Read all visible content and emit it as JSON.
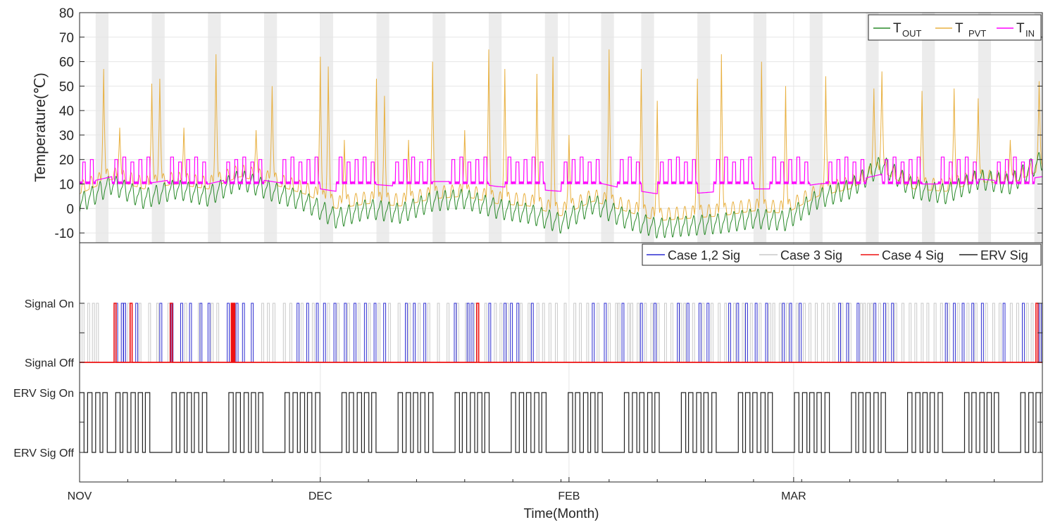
{
  "chart_data": [
    {
      "type": "line",
      "ylabel": "Temperature(℃)",
      "ylim": [
        -14,
        80
      ],
      "yticks": [
        -10,
        0,
        10,
        20,
        30,
        40,
        50,
        60,
        70,
        80
      ],
      "xlim": [
        0,
        120
      ],
      "shaded_bands": [
        [
          2.0,
          3.6
        ],
        [
          9.0,
          10.6
        ],
        [
          16.0,
          17.6
        ],
        [
          23.0,
          24.6
        ],
        [
          30.0,
          31.6
        ],
        [
          37.0,
          38.6
        ],
        [
          44.0,
          45.6
        ],
        [
          51.0,
          52.6
        ],
        [
          58.0,
          59.6
        ],
        [
          65.0,
          66.6
        ],
        [
          70.0,
          71.6
        ],
        [
          77.0,
          78.6
        ],
        [
          84.0,
          85.6
        ],
        [
          91.0,
          92.6
        ],
        [
          98.0,
          99.6
        ],
        [
          105.0,
          106.6
        ],
        [
          112.0,
          113.6
        ],
        [
          119.0,
          120.0
        ]
      ],
      "legend": {
        "position": "top-right",
        "entries": [
          {
            "main": "T",
            "sub": "OUT",
            "color": "#2a8a2a"
          },
          {
            "main": "T",
            "sub": "PVT",
            "color": "#e8b040"
          },
          {
            "main": "T",
            "sub": "IN",
            "color": "#ff00ff"
          }
        ]
      },
      "series": [
        {
          "name": "T OUT",
          "color": "#2a8a2a",
          "x": [
            0,
            4,
            8,
            12,
            16,
            20,
            24,
            28,
            32,
            36,
            40,
            44,
            48,
            52,
            56,
            60,
            64,
            68,
            72,
            76,
            80,
            84,
            88,
            92,
            96,
            100,
            104,
            108,
            112,
            116,
            120
          ],
          "y": [
            2,
            10,
            4,
            8,
            5,
            12,
            7,
            3,
            -4,
            0,
            -2,
            3,
            4,
            0,
            -2,
            -6,
            2,
            -4,
            -8,
            -7,
            -6,
            -4,
            -5,
            4,
            8,
            18,
            8,
            6,
            12,
            10,
            20
          ]
        },
        {
          "name": "T PVT",
          "color": "#e8b040",
          "x": [
            0,
            4,
            8,
            12,
            16,
            20,
            24,
            28,
            32,
            36,
            40,
            44,
            48,
            52,
            56,
            60,
            64,
            68,
            72,
            76,
            80,
            84,
            88,
            92,
            96,
            100,
            104,
            108,
            112,
            116,
            120
          ],
          "y": [
            8,
            14,
            10,
            12,
            10,
            15,
            12,
            8,
            2,
            4,
            3,
            6,
            7,
            4,
            3,
            -1,
            5,
            1,
            -3,
            -2,
            -1,
            1,
            0,
            7,
            10,
            17,
            10,
            9,
            13,
            12,
            18
          ]
        },
        {
          "name": "T IN",
          "color": "#ff00ff",
          "x": [
            0,
            4,
            8,
            12,
            16,
            20,
            24,
            28,
            32,
            36,
            40,
            44,
            48,
            52,
            56,
            60,
            64,
            68,
            72,
            76,
            80,
            84,
            88,
            92,
            96,
            100,
            104,
            108,
            112,
            116,
            120
          ],
          "y": [
            12,
            15,
            12,
            14,
            12,
            15,
            13,
            11,
            9,
            12,
            11,
            13,
            13,
            11,
            10,
            9,
            13,
            10,
            8,
            8,
            9,
            10,
            10,
            12,
            13,
            16,
            12,
            12,
            14,
            13,
            15
          ]
        }
      ],
      "peaks": {
        "T PVT": [
          [
            3.0,
            57
          ],
          [
            5.0,
            33
          ],
          [
            9.0,
            51
          ],
          [
            10.0,
            53
          ],
          [
            13.0,
            33
          ],
          [
            17.0,
            63
          ],
          [
            22.0,
            32
          ],
          [
            24.0,
            50
          ],
          [
            30.0,
            62
          ],
          [
            31.0,
            58
          ],
          [
            33.0,
            28
          ],
          [
            37.0,
            53
          ],
          [
            38.0,
            46
          ],
          [
            41.0,
            28
          ],
          [
            44.0,
            60
          ],
          [
            48.0,
            32
          ],
          [
            51.0,
            65
          ],
          [
            53.0,
            57
          ],
          [
            57.0,
            55
          ],
          [
            59.0,
            62
          ],
          [
            61.0,
            30
          ],
          [
            66.0,
            65
          ],
          [
            70.0,
            57
          ],
          [
            72.0,
            44
          ],
          [
            77.0,
            53
          ],
          [
            80.0,
            63
          ],
          [
            85.0,
            60
          ],
          [
            88.0,
            50
          ],
          [
            93.0,
            54
          ],
          [
            99.0,
            49
          ],
          [
            100.0,
            56
          ],
          [
            105.0,
            48
          ],
          [
            109.0,
            49
          ],
          [
            112.0,
            45
          ],
          [
            116.0,
            28
          ],
          [
            119.6,
            52
          ]
        ]
      }
    },
    {
      "type": "line",
      "yticklabels": [
        "ERV Sig Off",
        "ERV Sig On",
        "Signal Off",
        "Signal On"
      ],
      "xlabel": "Time(Month)",
      "xticklabels": [
        "NOV",
        "DEC",
        "FEB",
        "MAR"
      ],
      "xtick_positions": [
        0,
        30,
        61,
        89
      ],
      "xlim": [
        0,
        120
      ],
      "legend": {
        "position": "top-right",
        "entries": [
          {
            "label": "Case 1,2 Sig",
            "color": "#2c2cd0"
          },
          {
            "label": "Case 3 Sig",
            "color": "#c8c8c8"
          },
          {
            "label": "Case 4 Sig",
            "color": "#ee1111"
          },
          {
            "label": "ERV Sig",
            "color": "#222222"
          }
        ]
      },
      "signal_events": {
        "Case 1,2 Sig": [
          4.5,
          5.2,
          5.5,
          7.0,
          10.0,
          11.4,
          12.6,
          13.7,
          15.0,
          16.0,
          18.4,
          19.5,
          20.3,
          21.4,
          27.1,
          28.3,
          29.5,
          30.4,
          31.7,
          33.0,
          34.2,
          35.5,
          36.7,
          37.9,
          40.6,
          41.6,
          42.9,
          46.7,
          48.3,
          48.8,
          51.0,
          52.9,
          53.7,
          54.5,
          56.3,
          63.9,
          65.4,
          67.6,
          69.9,
          71.6,
          74.5,
          75.7,
          77.2,
          78.2,
          80.9,
          81.9,
          83.0,
          84.2,
          85.5,
          87.6,
          88.5,
          89.7,
          94.6,
          95.6,
          96.9,
          99.0,
          100.2,
          101.2,
          107.9,
          108.9,
          110.0,
          111.2,
          112.4,
          115.1,
          117.5,
          119.6
        ],
        "Case 3 Sig": [
          0.3,
          1.0,
          1.6,
          2.1,
          6.0,
          7.4,
          8.6,
          9.6,
          11.0,
          13.1,
          14.8,
          16.4,
          17.1,
          19.0,
          22.7,
          23.4,
          24.1,
          25.4,
          26.2,
          27.6,
          29.0,
          30.9,
          32.1,
          33.4,
          34.7,
          36.0,
          37.2,
          38.5,
          39.7,
          41.0,
          42.2,
          43.4,
          44.6,
          45.8,
          47.0,
          48.1,
          49.2,
          50.5,
          51.7,
          52.4,
          53.2,
          54.9,
          55.9,
          57.0,
          57.7,
          58.5,
          59.3,
          60.4,
          61.6,
          62.3,
          63.2,
          64.5,
          65.9,
          66.8,
          67.1,
          68.3,
          68.7,
          69.5,
          70.4,
          71.2,
          72.0,
          72.9,
          73.7,
          74.8,
          75.3,
          76.4,
          77.6,
          78.7,
          79.6,
          80.4,
          81.5,
          82.6,
          83.6,
          84.7,
          85.9,
          86.4,
          87.2,
          88.1,
          89.3,
          90.2,
          90.9,
          91.7,
          92.5,
          93.2,
          93.9,
          94.9,
          95.9,
          97.3,
          97.7,
          98.2,
          98.6,
          99.6,
          100.6,
          101.6,
          102.5,
          103.4,
          104.1,
          104.9,
          105.6,
          106.5,
          107.3,
          108.2,
          109.4,
          110.6,
          111.6,
          112.9,
          113.8,
          114.6,
          116.0,
          116.8,
          118.0,
          118.6,
          119.2,
          119.8
        ],
        "Case 4 Sig": [
          4.3,
          6.3,
          11.3,
          18.9,
          19.0,
          19.1,
          49.5,
          119.2
        ]
      },
      "erv_pulse_starts": [
        0,
        1,
        2,
        2.9,
        4.5,
        5.4,
        6.4,
        7.3,
        8.2,
        11.5,
        12.5,
        13.4,
        14.3,
        15.3,
        18.6,
        19.5,
        20.5,
        21.4,
        22.3,
        25.6,
        26.6,
        27.5,
        28.4,
        29.4,
        32.7,
        33.6,
        34.6,
        35.5,
        36.4,
        39.7,
        40.7,
        41.6,
        42.5,
        43.5,
        46.8,
        47.7,
        48.7,
        49.6,
        50.5,
        53.8,
        54.8,
        55.7,
        56.7,
        57.6,
        60.9,
        61.8,
        62.8,
        63.7,
        64.6,
        67.9,
        68.9,
        69.8,
        70.8,
        71.7,
        75.0,
        75.9,
        76.9,
        77.8,
        78.8,
        82.1,
        83.0,
        83.9,
        84.9,
        85.8,
        89.1,
        90.1,
        91.0,
        91.9,
        92.9,
        96.2,
        97.1,
        98.0,
        99.0,
        99.9,
        103.2,
        104.2,
        105.1,
        106.0,
        107.0,
        110.3,
        111.2,
        112.2,
        113.1,
        114.0,
        117.3,
        118.3,
        119.2
      ]
    }
  ]
}
